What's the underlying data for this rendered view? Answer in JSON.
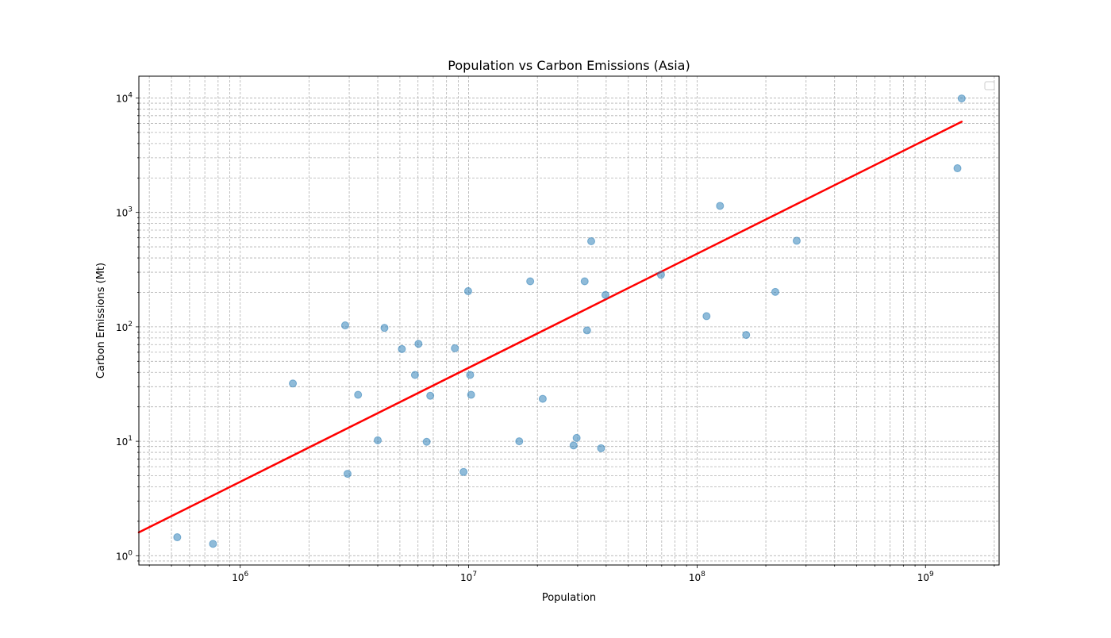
{
  "chart_data": {
    "type": "scatter",
    "title": "Population vs Carbon Emissions (Asia)",
    "xlabel": "Population",
    "ylabel": "Carbon Emissions (Mt)",
    "xscale": "log",
    "yscale": "log",
    "xlim": [
      360000,
      2100000000
    ],
    "ylim": [
      0.83,
      15500
    ],
    "grid": true,
    "grid_which": "both",
    "legend": "top-right",
    "legend_entries": [],
    "point_color": "#1f77b4",
    "point_alpha": 0.5,
    "line_color": "#ff0000",
    "x_ticks": [
      {
        "value": 1000000,
        "base": "10",
        "exp": "6"
      },
      {
        "value": 10000000,
        "base": "10",
        "exp": "7"
      },
      {
        "value": 100000000,
        "base": "10",
        "exp": "8"
      },
      {
        "value": 1000000000,
        "base": "10",
        "exp": "9"
      }
    ],
    "y_ticks": [
      {
        "value": 1,
        "label": "10",
        "exp": "0"
      },
      {
        "value": 10,
        "label": "10",
        "exp": "1"
      },
      {
        "value": 100,
        "label": "10",
        "exp": "2"
      },
      {
        "value": 1000,
        "label": "10",
        "exp": "3"
      },
      {
        "value": 10000,
        "label": "10",
        "exp": "4"
      }
    ],
    "points": [
      {
        "x": 530000,
        "y": 1.45
      },
      {
        "x": 760000,
        "y": 1.27
      },
      {
        "x": 1700000,
        "y": 32
      },
      {
        "x": 2880000,
        "y": 103
      },
      {
        "x": 2950000,
        "y": 5.2
      },
      {
        "x": 3280000,
        "y": 25.5
      },
      {
        "x": 4000000,
        "y": 10.2
      },
      {
        "x": 4280000,
        "y": 98
      },
      {
        "x": 5100000,
        "y": 64
      },
      {
        "x": 5820000,
        "y": 38
      },
      {
        "x": 6030000,
        "y": 71
      },
      {
        "x": 6550000,
        "y": 9.9
      },
      {
        "x": 6790000,
        "y": 25
      },
      {
        "x": 8700000,
        "y": 65
      },
      {
        "x": 9500000,
        "y": 5.4
      },
      {
        "x": 9950000,
        "y": 205
      },
      {
        "x": 10150000,
        "y": 38
      },
      {
        "x": 10250000,
        "y": 25.5
      },
      {
        "x": 16650000,
        "y": 10
      },
      {
        "x": 18600000,
        "y": 250
      },
      {
        "x": 21100000,
        "y": 23.5
      },
      {
        "x": 28800000,
        "y": 9.2
      },
      {
        "x": 29700000,
        "y": 10.7
      },
      {
        "x": 32200000,
        "y": 250
      },
      {
        "x": 33000000,
        "y": 93
      },
      {
        "x": 34400000,
        "y": 560
      },
      {
        "x": 38000000,
        "y": 8.7
      },
      {
        "x": 39700000,
        "y": 190
      },
      {
        "x": 69500000,
        "y": 285
      },
      {
        "x": 110000000,
        "y": 124
      },
      {
        "x": 126000000,
        "y": 1140
      },
      {
        "x": 164000000,
        "y": 85
      },
      {
        "x": 220000000,
        "y": 202
      },
      {
        "x": 273000000,
        "y": 565
      },
      {
        "x": 1380000000,
        "y": 2430
      },
      {
        "x": 1440000000,
        "y": 9900
      }
    ],
    "trend_line": {
      "x": [
        360000,
        1440000000
      ],
      "y": [
        1.6,
        6200
      ]
    }
  }
}
